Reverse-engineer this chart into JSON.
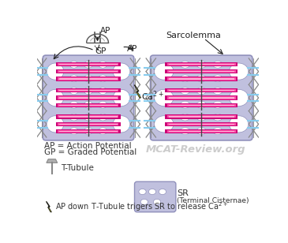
{
  "bg_color": "#ffffff",
  "cell_bg": "#c0c0de",
  "cell_edge": "#9090bb",
  "sr_white": "#ffffff",
  "myo_dark": "#cc0077",
  "myo_light": "#ff55aa",
  "myo_white_center": "#ffffff",
  "ttubule_color": "#888888",
  "blue_line": "#88ccee",
  "arrow_color": "#222222",
  "lightning_yellow": "#eeee00",
  "lightning_black": "#222222",
  "watermark_color": "#cccccc",
  "legend_text1": "AP = Action Potential",
  "legend_text2": "GP = Graded Potential",
  "legend_lightning": "AP down T-Tubule trigers SR to release Ca",
  "watermark": "MCAT-Review.org",
  "label_sarcolemma": "Sarcolemma",
  "label_ap": "AP",
  "label_gp": "GP",
  "label_ttubule": "T-Tubule",
  "label_sr1": "SR",
  "label_sr2": "(Terminal Cisternae)",
  "figw": 3.65,
  "figh": 3.08,
  "dpi": 100
}
